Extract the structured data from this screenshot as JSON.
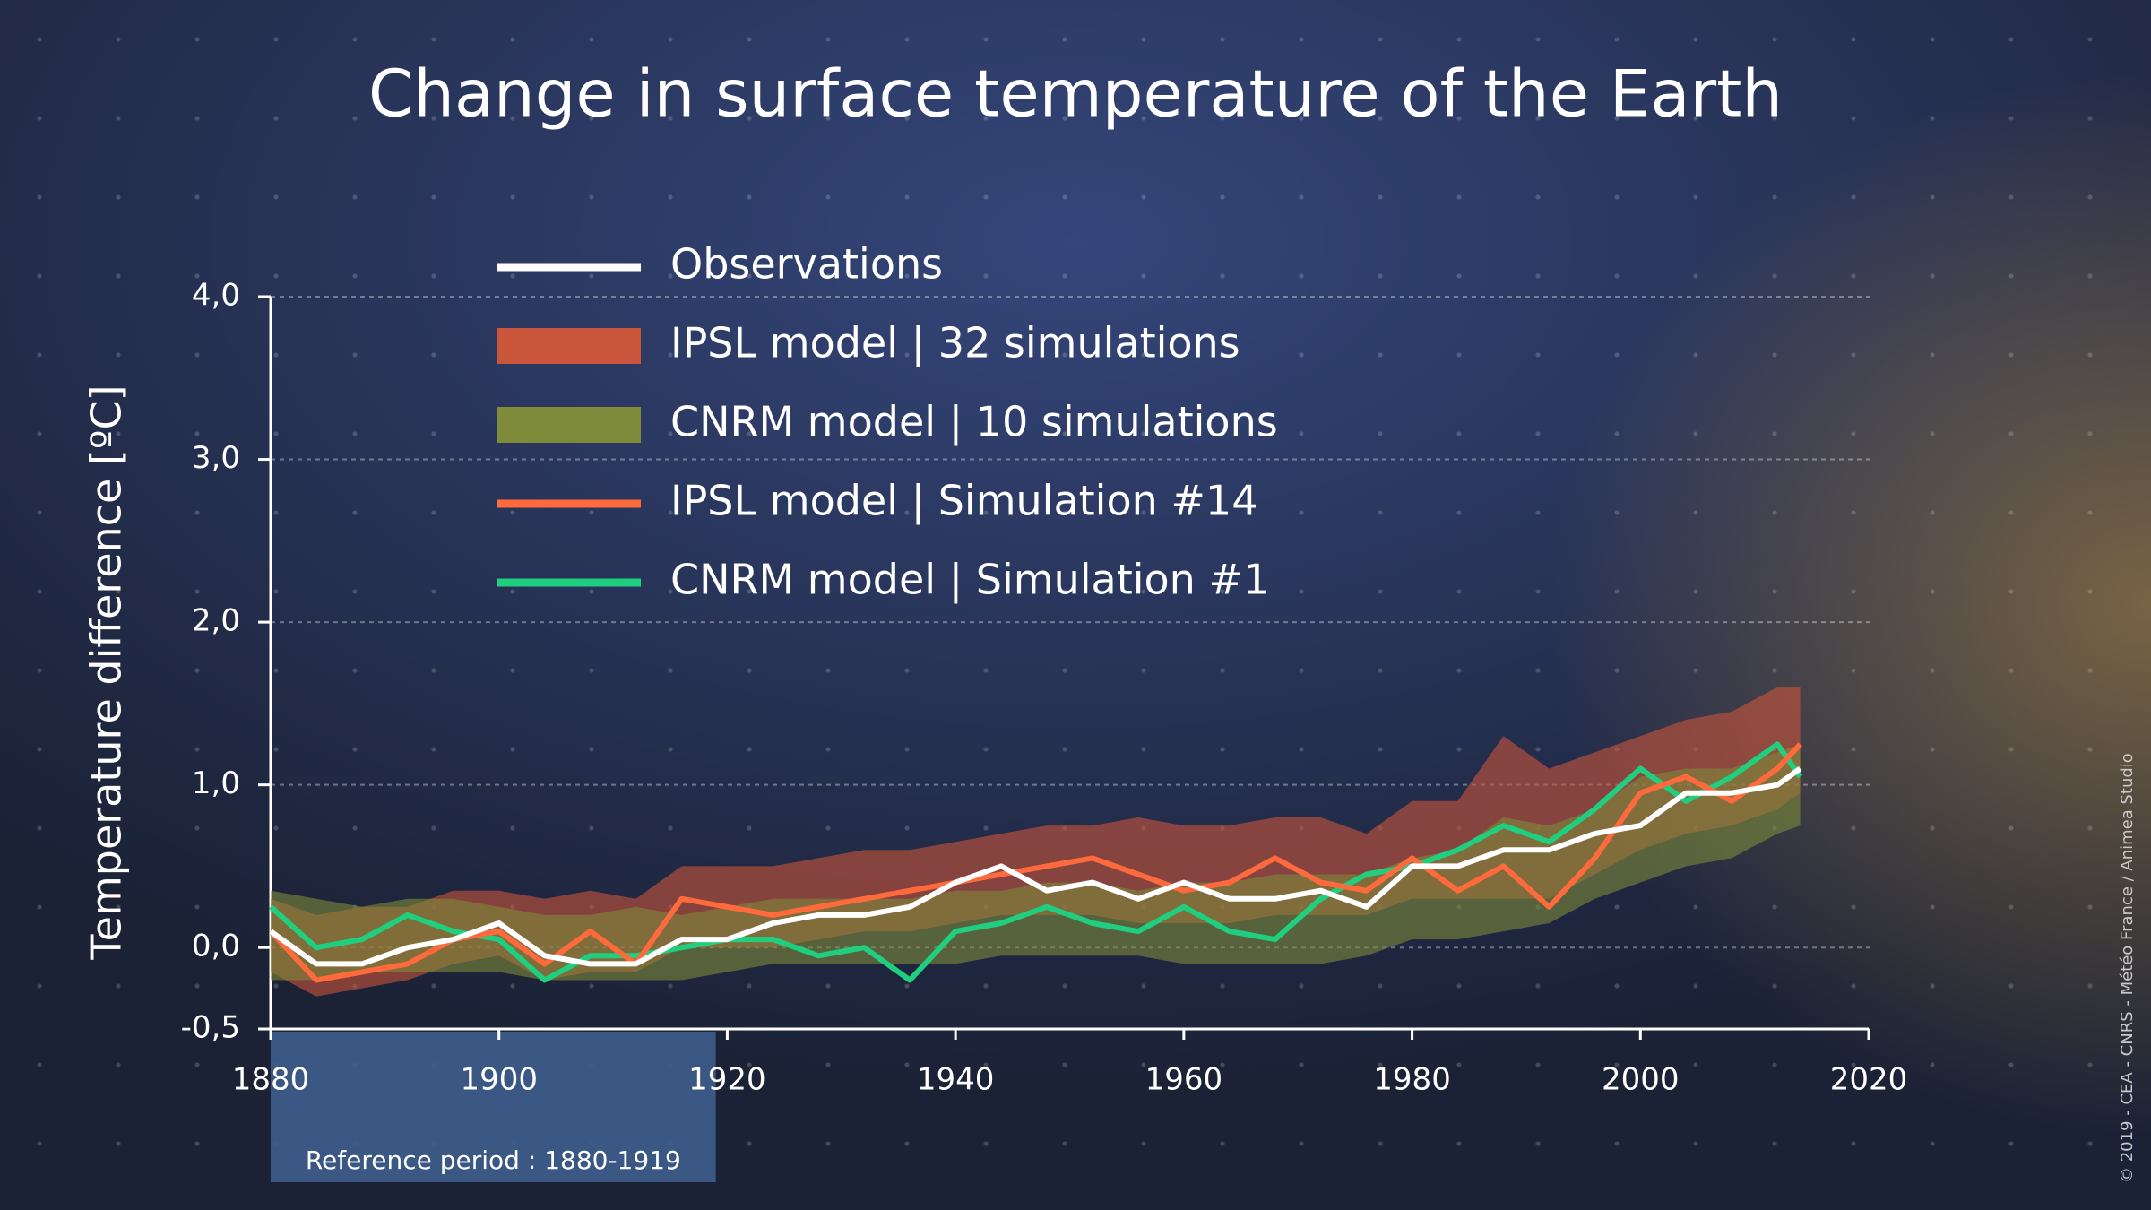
{
  "chart_data": {
    "type": "line",
    "title": "Change in surface temperature of the Earth",
    "y_label": "Temperature difference [ºC]",
    "credit": "© 2019 - CEA - CNRS - Météo France / Animea Studio",
    "reference_period": {
      "text": "Reference period : 1880-1919",
      "start": 1880,
      "end": 1919,
      "color": "#3f5d8c"
    },
    "x": [
      1880,
      1884,
      1888,
      1892,
      1896,
      1900,
      1904,
      1908,
      1912,
      1916,
      1920,
      1924,
      1928,
      1932,
      1936,
      1940,
      1944,
      1948,
      1952,
      1956,
      1960,
      1964,
      1968,
      1972,
      1976,
      1980,
      1984,
      1988,
      1992,
      1996,
      2000,
      2004,
      2008,
      2012,
      2014
    ],
    "xlim": [
      1880,
      2020
    ],
    "xticks": [
      1880,
      1900,
      1920,
      1940,
      1960,
      1980,
      2000,
      2020
    ],
    "ylim": [
      -0.5,
      4
    ],
    "yticks": [
      {
        "value": -0.5,
        "label": "-0,5"
      },
      {
        "value": 0,
        "label": "0,0"
      },
      {
        "value": 1,
        "label": "1,0"
      },
      {
        "value": 2,
        "label": "2,0"
      },
      {
        "value": 3,
        "label": "3,0"
      },
      {
        "value": 4,
        "label": "4,0"
      }
    ],
    "grid": true,
    "series": [
      {
        "name": "Observations",
        "color": "#ffffff",
        "values": [
          0.1,
          -0.1,
          -0.1,
          0.0,
          0.05,
          0.15,
          -0.05,
          -0.1,
          -0.1,
          0.05,
          0.05,
          0.15,
          0.2,
          0.2,
          0.25,
          0.4,
          0.5,
          0.35,
          0.4,
          0.3,
          0.4,
          0.3,
          0.3,
          0.35,
          0.25,
          0.5,
          0.5,
          0.6,
          0.6,
          0.7,
          0.75,
          0.95,
          0.95,
          1.0,
          1.1
        ]
      },
      {
        "name": "IPSL model | 32 simulations",
        "color": "#c9553a",
        "lower": [
          -0.15,
          -0.3,
          -0.25,
          -0.2,
          -0.1,
          -0.05,
          -0.2,
          -0.15,
          -0.15,
          0.0,
          0.0,
          0.0,
          0.05,
          0.1,
          0.1,
          0.15,
          0.2,
          0.2,
          0.2,
          0.15,
          0.15,
          0.15,
          0.2,
          0.2,
          0.2,
          0.3,
          0.3,
          0.3,
          0.3,
          0.45,
          0.6,
          0.7,
          0.75,
          0.85,
          0.95
        ],
        "upper": [
          0.3,
          0.2,
          0.25,
          0.25,
          0.35,
          0.35,
          0.3,
          0.35,
          0.3,
          0.5,
          0.5,
          0.5,
          0.55,
          0.6,
          0.6,
          0.65,
          0.7,
          0.75,
          0.75,
          0.8,
          0.75,
          0.75,
          0.8,
          0.8,
          0.7,
          0.9,
          0.9,
          1.3,
          1.1,
          1.2,
          1.3,
          1.4,
          1.45,
          1.6,
          1.6
        ]
      },
      {
        "name": "CNRM model | 10 simulations",
        "color": "#7d8b3a",
        "lower": [
          -0.2,
          -0.2,
          -0.15,
          -0.15,
          -0.15,
          -0.15,
          -0.2,
          -0.2,
          -0.2,
          -0.2,
          -0.15,
          -0.1,
          -0.1,
          -0.1,
          -0.1,
          -0.1,
          -0.05,
          -0.05,
          -0.05,
          -0.05,
          -0.1,
          -0.1,
          -0.1,
          -0.1,
          -0.05,
          0.05,
          0.05,
          0.1,
          0.15,
          0.3,
          0.4,
          0.5,
          0.55,
          0.7,
          0.75
        ],
        "upper": [
          0.35,
          0.3,
          0.25,
          0.3,
          0.3,
          0.25,
          0.2,
          0.2,
          0.25,
          0.2,
          0.25,
          0.3,
          0.3,
          0.3,
          0.3,
          0.35,
          0.35,
          0.4,
          0.4,
          0.35,
          0.4,
          0.4,
          0.45,
          0.45,
          0.45,
          0.55,
          0.6,
          0.8,
          0.75,
          0.85,
          1.05,
          1.1,
          1.1,
          1.2,
          1.25
        ]
      },
      {
        "name": "IPSL model | Simulation #14",
        "color": "#ff6a3d",
        "values": [
          0.1,
          -0.2,
          -0.15,
          -0.1,
          0.05,
          0.1,
          -0.1,
          0.1,
          -0.1,
          0.3,
          0.25,
          0.2,
          0.25,
          0.3,
          0.35,
          0.4,
          0.45,
          0.5,
          0.55,
          0.45,
          0.35,
          0.4,
          0.55,
          0.4,
          0.35,
          0.55,
          0.35,
          0.5,
          0.25,
          0.55,
          0.95,
          1.05,
          0.9,
          1.1,
          1.25
        ]
      },
      {
        "name": "CNRM model | Simulation #1",
        "color": "#1fcf7f",
        "values": [
          0.25,
          0.0,
          0.05,
          0.2,
          0.1,
          0.05,
          -0.2,
          -0.05,
          -0.05,
          0.0,
          0.05,
          0.05,
          -0.05,
          0.0,
          -0.2,
          0.1,
          0.15,
          0.25,
          0.15,
          0.1,
          0.25,
          0.1,
          0.05,
          0.3,
          0.45,
          0.5,
          0.6,
          0.75,
          0.65,
          0.85,
          1.1,
          0.9,
          1.05,
          1.25,
          1.05
        ]
      }
    ]
  }
}
